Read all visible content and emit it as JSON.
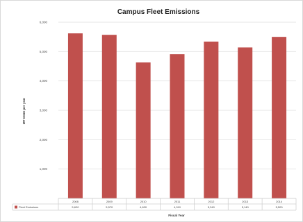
{
  "chart_data": {
    "type": "bar",
    "title": "Campus Fleet Emissions",
    "xlabel": "Fiscal Year",
    "ylabel": "MT CO2e per year",
    "categories": [
      "2008",
      "2009",
      "2010",
      "2011",
      "2012",
      "2013",
      "2014"
    ],
    "series": [
      {
        "name": "Fleet Emissions",
        "values": [
          5620,
          5570,
          4630,
          4910,
          5340,
          5140,
          5500
        ],
        "color": "#c0504d"
      }
    ],
    "table_values": [
      "5,620",
      "5,570",
      "4,630",
      "4,910",
      "5,340",
      "5,140",
      "5,500"
    ],
    "ylim": [
      0,
      6000
    ],
    "yticks": [
      "",
      "1,000",
      "2,000",
      "3,000",
      "4,000",
      "5,000",
      "6,000"
    ],
    "grid": true,
    "legend": "data-table"
  }
}
